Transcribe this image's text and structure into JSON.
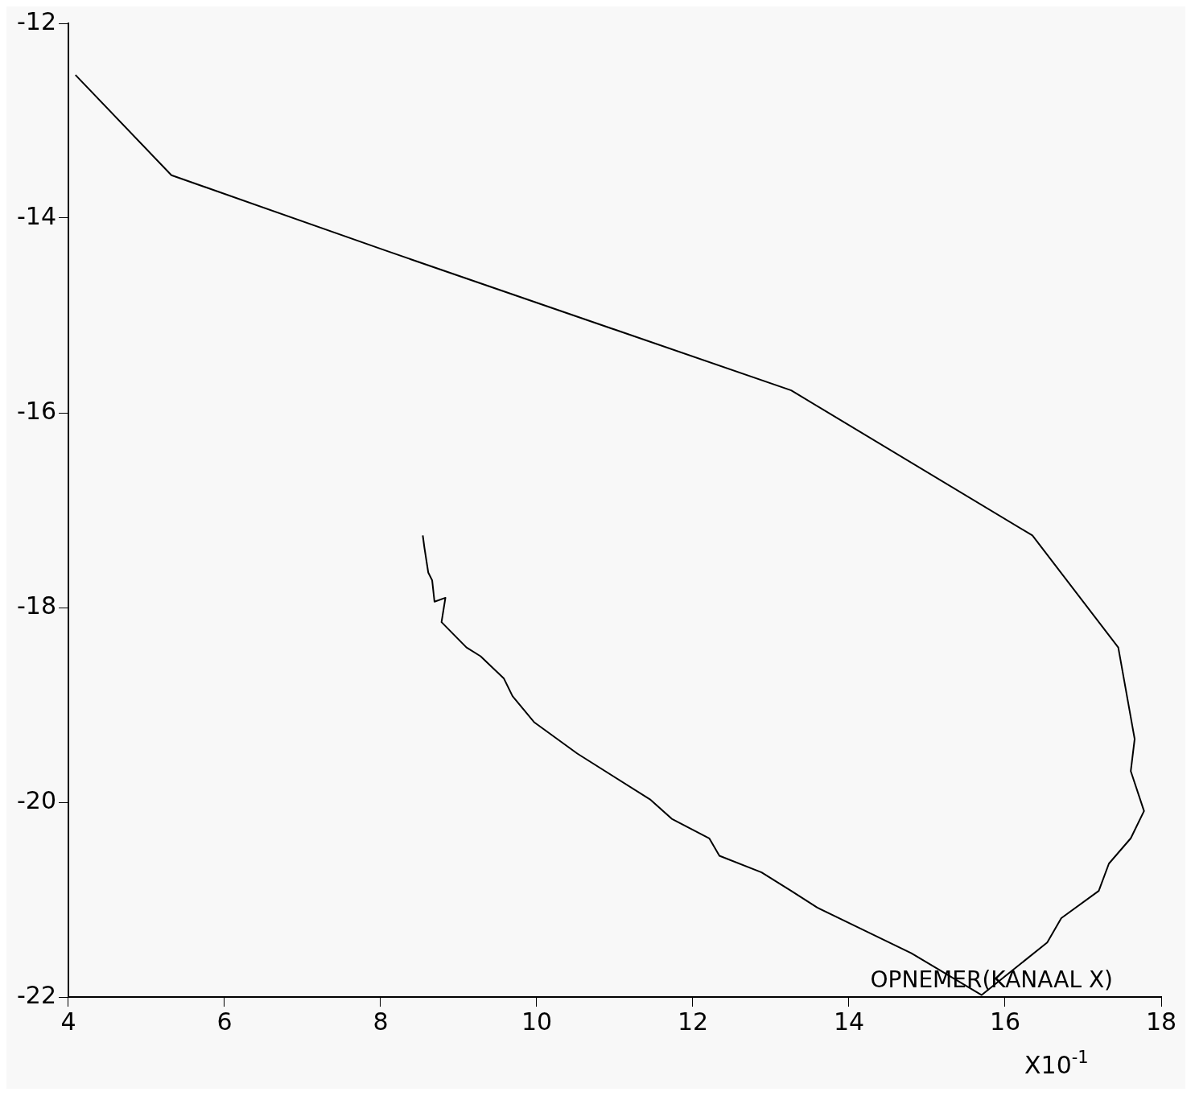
{
  "chart_data": {
    "type": "line",
    "xlabel": "OPNEMER(KANAAL X)",
    "annotations": [
      "X10$^{-1}$"
    ],
    "x": [
      4.09,
      5.32,
      8.05,
      13.26,
      16.35,
      17.45,
      17.66,
      17.61,
      17.78,
      17.61,
      17.33,
      17.2,
      16.72,
      16.54,
      15.7,
      14.8,
      14.13,
      13.59,
      13.26,
      12.88,
      12.34,
      12.21,
      11.73,
      11.45,
      10.52,
      9.97,
      9.69,
      9.58,
      9.28,
      9.1,
      8.78,
      8.83,
      8.69,
      8.66,
      8.61,
      8.56,
      8.54
    ],
    "series": [
      {
        "color": "#000000",
        "values": [
          -12.53,
          -13.56,
          -14.33,
          -15.77,
          -17.26,
          -18.41,
          -19.35,
          -19.68,
          -20.09,
          -20.37,
          -20.63,
          -20.91,
          -21.19,
          -21.44,
          -21.98,
          -21.55,
          -21.29,
          -21.08,
          -20.91,
          -20.72,
          -20.55,
          -20.37,
          -20.17,
          -19.97,
          -19.5,
          -19.18,
          -18.91,
          -18.73,
          -18.5,
          -18.41,
          -18.15,
          -17.9,
          -17.94,
          -17.72,
          -17.64,
          -17.38,
          -17.26
        ]
      }
    ],
    "xlim": [
      4,
      18
    ],
    "xticks": [
      4,
      6,
      8,
      10,
      12,
      14,
      16,
      18
    ],
    "ylim": [
      -22,
      -12
    ],
    "yticks": [
      -22,
      -20,
      -18,
      -16,
      -14,
      -12
    ],
    "grid": false,
    "legend": false,
    "marker": "none",
    "line_style": "solid"
  }
}
